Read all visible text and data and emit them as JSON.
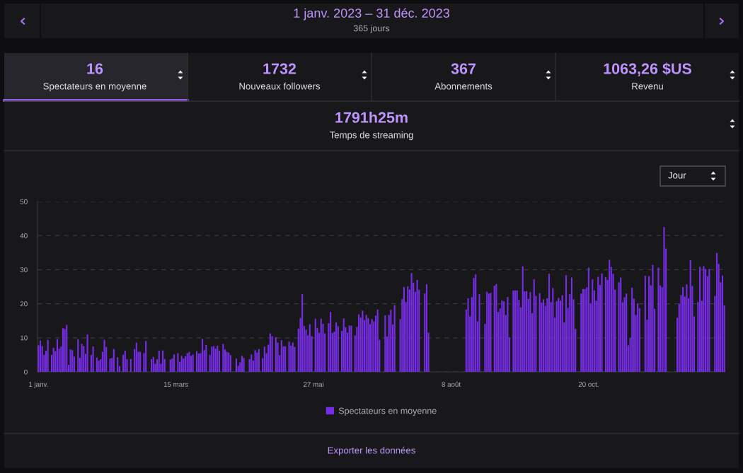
{
  "chart_data": [
    {
      "type": "other",
      "title": "1 janv. 2023 – 31 déc. 2023",
      "subtitle": "365 jours",
      "annotations": [
        "16",
        "Spectateurs en moyenne",
        "1732",
        "Nouveaux followers",
        "367",
        "Abonnements",
        "1063,26 $US",
        "Revenu",
        "1791h25m",
        "Temps de streaming",
        "Jour",
        "Exporter les données"
      ]
    },
    {
      "type": "bar",
      "ylim": [
        0,
        50
      ],
      "yticks": [
        0,
        10,
        20,
        30,
        40,
        50
      ],
      "grid": "y",
      "legend": "bottom",
      "xlim": [
        "2022-12-31T12:00",
        "2023-12-31T12:00"
      ],
      "xticks": [
        {
          "value": "2023-01-01",
          "label": "1 janv."
        },
        {
          "value": "2023-03-15",
          "label": "15 mars"
        },
        {
          "value": "2023-05-27",
          "label": "27 mai"
        },
        {
          "value": "2023-08-08",
          "label": "8 août"
        },
        {
          "value": "2023-10-20",
          "label": "20 oct."
        }
      ],
      "x": [
        "2023-01-01",
        "2023-01-02",
        "2023-01-03",
        "2023-01-04",
        "2023-01-05",
        "2023-01-06",
        "2023-01-07",
        "2023-01-08",
        "2023-01-09",
        "2023-01-10",
        "2023-01-11",
        "2023-01-12",
        "2023-01-13",
        "2023-01-14",
        "2023-01-15",
        "2023-01-16",
        "2023-01-17",
        "2023-01-18",
        "2023-01-19",
        "2023-01-20",
        "2023-01-21",
        "2023-01-22",
        "2023-01-23",
        "2023-01-24",
        "2023-01-25",
        "2023-01-26",
        "2023-01-27",
        "2023-01-28",
        "2023-01-29",
        "2023-01-30",
        "2023-01-31",
        "2023-02-01",
        "2023-02-02",
        "2023-02-03",
        "2023-02-04",
        "2023-02-05",
        "2023-02-06",
        "2023-02-07",
        "2023-02-08",
        "2023-02-09",
        "2023-02-10",
        "2023-02-11",
        "2023-02-12",
        "2023-02-13",
        "2023-02-14",
        "2023-02-15",
        "2023-02-16",
        "2023-02-17",
        "2023-02-18",
        "2023-02-19",
        "2023-02-20",
        "2023-02-21",
        "2023-02-22",
        "2023-02-23",
        "2023-02-24",
        "2023-02-25",
        "2023-02-26",
        "2023-02-27",
        "2023-02-28",
        "2023-03-01",
        "2023-03-02",
        "2023-03-03",
        "2023-03-04",
        "2023-03-05",
        "2023-03-06",
        "2023-03-07",
        "2023-03-08",
        "2023-03-09",
        "2023-03-10",
        "2023-03-11",
        "2023-03-12",
        "2023-03-13",
        "2023-03-14",
        "2023-03-15",
        "2023-03-16",
        "2023-03-17",
        "2023-03-18",
        "2023-03-19",
        "2023-03-20",
        "2023-03-21",
        "2023-03-22",
        "2023-03-23",
        "2023-03-24",
        "2023-03-25",
        "2023-03-26",
        "2023-03-27",
        "2023-03-28",
        "2023-03-29",
        "2023-03-30",
        "2023-03-31",
        "2023-04-01",
        "2023-04-02",
        "2023-04-03",
        "2023-04-04",
        "2023-04-05",
        "2023-04-06",
        "2023-04-07",
        "2023-04-08",
        "2023-04-09",
        "2023-04-10",
        "2023-04-11",
        "2023-04-12",
        "2023-04-13",
        "2023-04-14",
        "2023-04-15",
        "2023-04-16",
        "2023-04-17",
        "2023-04-18",
        "2023-04-19",
        "2023-04-20",
        "2023-04-21",
        "2023-04-22",
        "2023-04-23",
        "2023-04-24",
        "2023-04-25",
        "2023-04-26",
        "2023-04-27",
        "2023-04-28",
        "2023-04-29",
        "2023-04-30",
        "2023-05-01",
        "2023-05-02",
        "2023-05-03",
        "2023-05-04",
        "2023-05-05",
        "2023-05-06",
        "2023-05-07",
        "2023-05-08",
        "2023-05-09",
        "2023-05-10",
        "2023-05-11",
        "2023-05-12",
        "2023-05-13",
        "2023-05-14",
        "2023-05-15",
        "2023-05-16",
        "2023-05-17",
        "2023-05-18",
        "2023-05-19",
        "2023-05-20",
        "2023-05-21",
        "2023-05-22",
        "2023-05-23",
        "2023-05-24",
        "2023-05-25",
        "2023-05-26",
        "2023-05-27",
        "2023-05-28",
        "2023-05-29",
        "2023-05-30",
        "2023-05-31",
        "2023-06-01",
        "2023-06-02",
        "2023-06-03",
        "2023-06-04",
        "2023-06-05",
        "2023-06-06",
        "2023-06-07",
        "2023-06-08",
        "2023-06-09",
        "2023-06-10",
        "2023-06-11",
        "2023-06-12",
        "2023-06-13",
        "2023-06-14",
        "2023-06-15",
        "2023-06-16",
        "2023-06-17",
        "2023-06-18",
        "2023-06-19",
        "2023-06-20",
        "2023-06-21",
        "2023-06-22",
        "2023-06-23",
        "2023-06-24",
        "2023-06-25",
        "2023-06-26",
        "2023-06-27",
        "2023-06-28",
        "2023-06-29",
        "2023-06-30",
        "2023-07-01",
        "2023-07-02",
        "2023-07-03",
        "2023-07-04",
        "2023-07-05",
        "2023-07-06",
        "2023-07-07",
        "2023-07-08",
        "2023-07-09",
        "2023-07-10",
        "2023-07-11",
        "2023-07-12",
        "2023-07-13",
        "2023-07-14",
        "2023-07-15",
        "2023-07-16",
        "2023-07-17",
        "2023-07-18",
        "2023-07-19",
        "2023-07-20",
        "2023-07-21",
        "2023-07-22",
        "2023-07-23",
        "2023-07-24",
        "2023-07-25",
        "2023-07-26",
        "2023-07-27",
        "2023-07-28",
        "2023-07-29",
        "2023-07-30",
        "2023-07-31",
        "2023-08-01",
        "2023-08-02",
        "2023-08-03",
        "2023-08-04",
        "2023-08-05",
        "2023-08-06",
        "2023-08-07",
        "2023-08-08",
        "2023-08-09",
        "2023-08-10",
        "2023-08-11",
        "2023-08-12",
        "2023-08-13",
        "2023-08-14",
        "2023-08-15",
        "2023-08-16",
        "2023-08-17",
        "2023-08-18",
        "2023-08-19",
        "2023-08-20",
        "2023-08-21",
        "2023-08-22",
        "2023-08-23",
        "2023-08-24",
        "2023-08-25",
        "2023-08-26",
        "2023-08-27",
        "2023-08-28",
        "2023-08-29",
        "2023-08-30",
        "2023-08-31",
        "2023-09-01",
        "2023-09-02",
        "2023-09-03",
        "2023-09-04",
        "2023-09-05",
        "2023-09-06",
        "2023-09-07",
        "2023-09-08",
        "2023-09-09",
        "2023-09-10",
        "2023-09-11",
        "2023-09-12",
        "2023-09-13",
        "2023-09-14",
        "2023-09-15",
        "2023-09-16",
        "2023-09-17",
        "2023-09-18",
        "2023-09-19",
        "2023-09-20",
        "2023-09-21",
        "2023-09-22",
        "2023-09-23",
        "2023-09-24",
        "2023-09-25",
        "2023-09-26",
        "2023-09-27",
        "2023-09-28",
        "2023-09-29",
        "2023-09-30",
        "2023-10-01",
        "2023-10-02",
        "2023-10-03",
        "2023-10-04",
        "2023-10-05",
        "2023-10-06",
        "2023-10-07",
        "2023-10-08",
        "2023-10-09",
        "2023-10-10",
        "2023-10-11",
        "2023-10-12",
        "2023-10-13",
        "2023-10-14",
        "2023-10-15",
        "2023-10-16",
        "2023-10-17",
        "2023-10-18",
        "2023-10-19",
        "2023-10-20",
        "2023-10-21",
        "2023-10-22",
        "2023-10-23",
        "2023-10-24",
        "2023-10-25",
        "2023-10-26",
        "2023-10-27",
        "2023-10-28",
        "2023-10-29",
        "2023-10-30",
        "2023-10-31",
        "2023-11-01",
        "2023-11-02",
        "2023-11-03",
        "2023-11-04",
        "2023-11-05",
        "2023-11-06",
        "2023-11-07",
        "2023-11-08",
        "2023-11-09",
        "2023-11-10",
        "2023-11-11",
        "2023-11-12",
        "2023-11-13",
        "2023-11-14",
        "2023-11-15",
        "2023-11-16",
        "2023-11-17",
        "2023-11-18",
        "2023-11-19",
        "2023-11-20",
        "2023-11-21",
        "2023-11-22",
        "2023-11-23",
        "2023-11-24",
        "2023-11-25",
        "2023-11-26",
        "2023-11-27",
        "2023-11-28",
        "2023-11-29",
        "2023-11-30",
        "2023-12-01",
        "2023-12-02",
        "2023-12-03",
        "2023-12-04",
        "2023-12-05",
        "2023-12-06",
        "2023-12-07",
        "2023-12-08",
        "2023-12-09",
        "2023-12-10",
        "2023-12-11",
        "2023-12-12",
        "2023-12-13",
        "2023-12-14",
        "2023-12-15",
        "2023-12-16",
        "2023-12-17",
        "2023-12-18",
        "2023-12-19",
        "2023-12-20",
        "2023-12-21",
        "2023-12-22",
        "2023-12-23",
        "2023-12-24",
        "2023-12-25",
        "2023-12-26",
        "2023-12-27",
        "2023-12-28",
        "2023-12-29",
        "2023-12-30",
        "2023-12-31"
      ],
      "series": [
        {
          "name": "Spectateurs en moyenne",
          "color": "#772ce8",
          "values": [
            7.8,
            9.2,
            7.6,
            5,
            6.2,
            9.4,
            null,
            5,
            7.1,
            6.1,
            9.6,
            6.8,
            7.5,
            12.8,
            12.6,
            13.8,
            2.1,
            6.6,
            6.4,
            4.5,
            null,
            9.6,
            4.1,
            8.2,
            7.6,
            5.3,
            11,
            null,
            5,
            7.5,
            null,
            4.2,
            3.3,
            3.7,
            5.9,
            9.4,
            7.3,
            null,
            3.9,
            4.1,
            6.7,
            null,
            4.3,
            1.7,
            null,
            5,
            6.2,
            3.7,
            null,
            3.8,
            null,
            6.7,
            8.6,
            5.9,
            5.9,
            null,
            5.5,
            9.1,
            null,
            null,
            3.7,
            4.4,
            2.4,
            3.7,
            6.2,
            2.4,
            6.3,
            3.8,
            null,
            null,
            3.6,
            3.9,
            5.1,
            null,
            5.5,
            3,
            4.7,
            3.9,
            4.6,
            5.5,
            5.9,
            4.7,
            5.1,
            null,
            6.1,
            5.4,
            5.5,
            9.7,
            6.4,
            7.9,
            null,
            5,
            7.4,
            7.6,
            6.8,
            7.7,
            6.2,
            null,
            8.2,
            6.6,
            5.9,
            5.7,
            4.9,
            null,
            null,
            3.9,
            1.8,
            2.8,
            4.7,
            4.1,
            null,
            null,
            3.7,
            5.1,
            3.3,
            6.4,
            5.7,
            6.7,
            null,
            4,
            7.4,
            5.5,
            8,
            11.3,
            10.5,
            null,
            10.2,
            8.6,
            4.9,
            9.3,
            7.5,
            7.5,
            null,
            8.9,
            7.7,
            8.6,
            7.3,
            null,
            12.7,
            15.8,
            22.8,
            13.5,
            12.4,
            10.7,
            14,
            10.5,
            null,
            15.6,
            12.9,
            11.5,
            15.6,
            14.1,
            11.3,
            null,
            14.3,
            17.6,
            11.4,
            11.8,
            14.5,
            13.4,
            null,
            12,
            15.7,
            13.1,
            11.5,
            13.6,
            13.6,
            null,
            10.7,
            13.2,
            16.9,
            15.9,
            18,
            15.2,
            16.7,
            15.8,
            14,
            15.5,
            14.8,
            16.5,
            18.3,
            9.4,
            null,
            null,
            16.6,
            10.4,
            16.7,
            18.2,
            13.9,
            19.6,
            null,
            null,
            15.5,
            21.4,
            24.9,
            20.5,
            25.1,
            24.2,
            29,
            26.2,
            23.5,
            27,
            24.1,
            null,
            null,
            23,
            25.7,
            11.5,
            null,
            null,
            null,
            null,
            null,
            null,
            null,
            null,
            null,
            null,
            null,
            null,
            null,
            null,
            null,
            null,
            null,
            null,
            null,
            18.3,
            21.6,
            16.3,
            21.9,
            27.6,
            28.6,
            14.8,
            22.8,
            null,
            null,
            14.1,
            23.5,
            23,
            23.2,
            null,
            25.3,
            25.8,
            17.6,
            18.6,
            21,
            20.7,
            16.7,
            22,
            10.1,
            null,
            23.9,
            23.9,
            23.9,
            21.2,
            18.9,
            31,
            23.6,
            23.7,
            21.4,
            23.4,
            17.2,
            27.2,
            22.3,
            null,
            23.1,
            20.3,
            21.3,
            19.4,
            21.6,
            28.8,
            20.5,
            24.6,
            15.9,
            20.7,
            21.7,
            20.9,
            22.5,
            14.5,
            28.4,
            18.8,
            22.8,
            27.7,
            21.3,
            12.6,
            null,
            null,
            23,
            24.3,
            24.3,
            24.8,
            30.6,
            20.1,
            27.2,
            23.9,
            20.9,
            27.9,
            25.5,
            28.9,
            null,
            27.8,
            27,
            32.9,
            30.8,
            28.8,
            24.1,
            null,
            26.3,
            27.7,
            20.4,
            21.9,
            23,
            7.8,
            10,
            24.7,
            21.5,
            16.7,
            20.1,
            18.7,
            null,
            null,
            28.2,
            15.3,
            28.1,
            25.4,
            31.4,
            18.5,
            null,
            30.6,
            25.4,
            24.8,
            42.5,
            36.2,
            null,
            null,
            null,
            null,
            null,
            15.9,
            20,
            22.6,
            24.9,
            22.1,
            25.7,
            21.6,
            32.8,
            25.2,
            16.3,
            null,
            20.5,
            30.8,
            20.9,
            31,
            30.2,
            28.1,
            30.2,
            null,
            null,
            22.3,
            34.9,
            31.7,
            26.3,
            28.3,
            19.5
          ]
        }
      ]
    }
  ]
}
